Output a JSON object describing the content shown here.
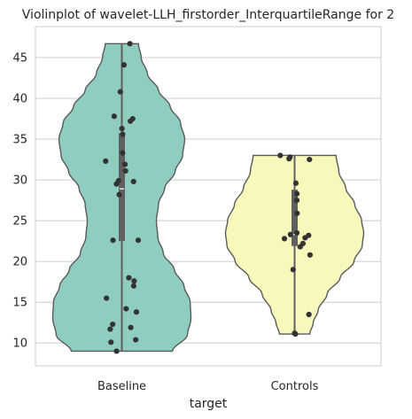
{
  "chart_data": {
    "type": "violin",
    "title": "Violinplot of wavelet-LLH_firstorder_InterquartileRange for 2",
    "xlabel": "target",
    "ylabel": "",
    "categories": [
      "Baseline",
      "Controls"
    ],
    "ylim": [
      7.2,
      48.8
    ],
    "yticks": [
      10,
      15,
      20,
      25,
      30,
      35,
      40,
      45
    ],
    "grid": "horizontal",
    "colors": {
      "Baseline": "#8ecdc0",
      "Controls": "#f8f8bc",
      "outline": "#5a5a5a",
      "points": "#333333",
      "grid": "#cccccc",
      "box": "#5f5f5f",
      "median": "#e6e6e6"
    },
    "series": [
      {
        "name": "Baseline",
        "points": [
          46.7,
          44.1,
          40.8,
          37.8,
          37.5,
          37.2,
          36.3,
          35.6,
          33.3,
          32.3,
          31.9,
          31.1,
          29.9,
          29.8,
          29.5,
          28.2,
          22.6,
          22.6,
          18.0,
          17.6,
          17.0,
          15.5,
          14.2,
          13.8,
          12.3,
          11.9,
          11.7,
          10.4,
          10.1,
          9.0
        ],
        "box": {
          "q1": 22.5,
          "median": 28.9,
          "q3": 35.7,
          "whisker_low": 9.0,
          "whisker_high": 46.7
        },
        "density_profile": [
          [
            9.0,
            0.73
          ],
          [
            11.0,
            0.95
          ],
          [
            13.0,
            1.0
          ],
          [
            15.0,
            0.99
          ],
          [
            17.0,
            0.9
          ],
          [
            19.0,
            0.76
          ],
          [
            21.0,
            0.6
          ],
          [
            23.0,
            0.52
          ],
          [
            25.0,
            0.5
          ],
          [
            27.0,
            0.53
          ],
          [
            29.0,
            0.62
          ],
          [
            31.0,
            0.77
          ],
          [
            33.0,
            0.88
          ],
          [
            35.0,
            0.91
          ],
          [
            37.0,
            0.85
          ],
          [
            39.0,
            0.7
          ],
          [
            41.0,
            0.53
          ],
          [
            43.0,
            0.37
          ],
          [
            45.0,
            0.28
          ],
          [
            46.7,
            0.24
          ]
        ]
      },
      {
        "name": "Controls",
        "points": [
          33.0,
          32.8,
          32.6,
          32.5,
          29.6,
          28.3,
          27.5,
          25.9,
          23.5,
          23.3,
          23.2,
          22.9,
          22.8,
          22.2,
          21.8,
          20.8,
          19.0,
          13.5,
          11.2,
          11.1
        ],
        "box": {
          "q1": 21.9,
          "median": 23.3,
          "q3": 28.8,
          "whisker_low": 11.1,
          "whisker_high": 33.0
        },
        "density_profile": [
          [
            11.1,
            0.22
          ],
          [
            12.5,
            0.27
          ],
          [
            14.0,
            0.34
          ],
          [
            16.0,
            0.47
          ],
          [
            18.0,
            0.66
          ],
          [
            20.0,
            0.86
          ],
          [
            22.0,
            0.98
          ],
          [
            23.5,
            1.0
          ],
          [
            25.0,
            0.97
          ],
          [
            27.0,
            0.87
          ],
          [
            29.0,
            0.74
          ],
          [
            31.0,
            0.64
          ],
          [
            33.0,
            0.6
          ]
        ]
      }
    ]
  }
}
